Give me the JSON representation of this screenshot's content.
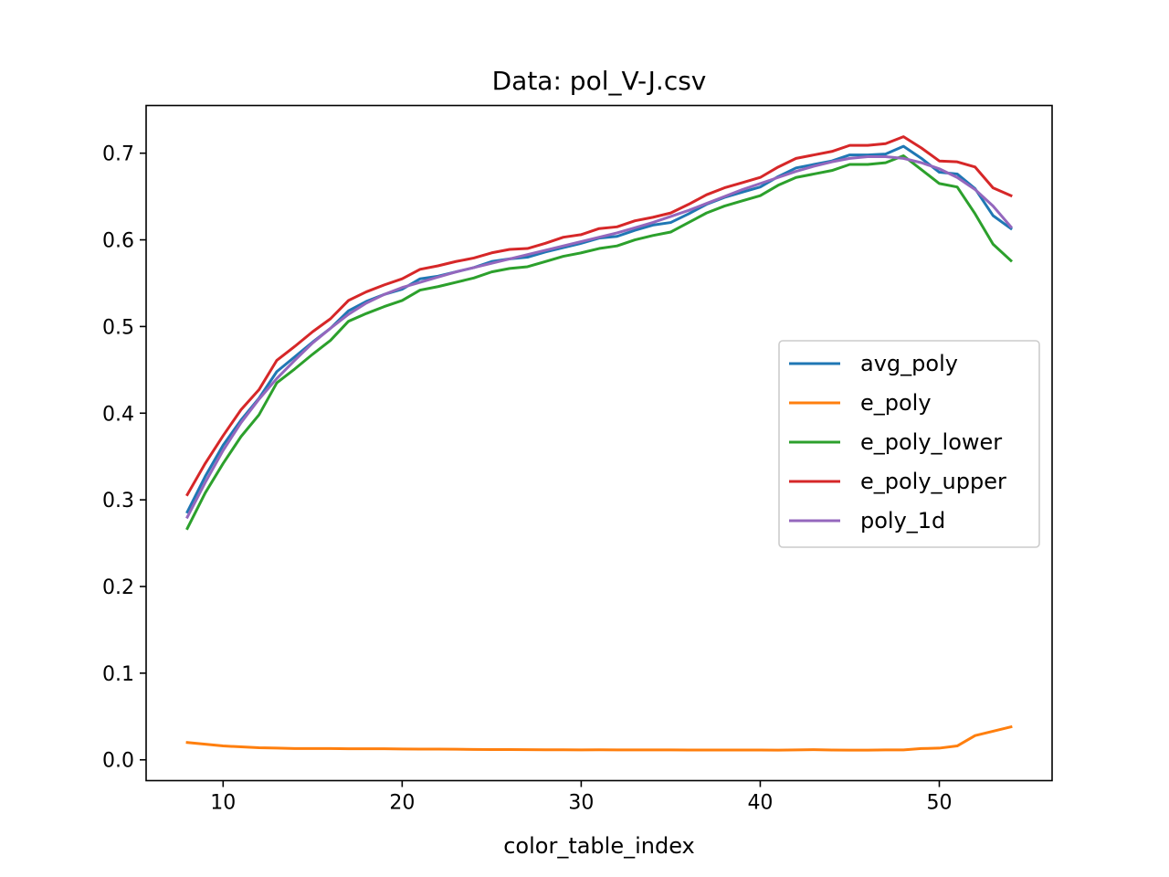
{
  "chart_data": {
    "type": "line",
    "title": "Data: pol_V-J.csv",
    "xlabel": "color_table_index",
    "ylabel": "",
    "xlim": [
      5.7,
      56.3
    ],
    "ylim": [
      -0.024,
      0.755
    ],
    "x_ticks": [
      10,
      20,
      30,
      40,
      50
    ],
    "y_ticks": [
      0.0,
      0.1,
      0.2,
      0.3,
      0.4,
      0.5,
      0.6,
      0.7
    ],
    "x_tick_labels": [
      "10",
      "20",
      "30",
      "40",
      "50"
    ],
    "y_tick_labels": [
      "0.0",
      "0.1",
      "0.2",
      "0.3",
      "0.4",
      "0.5",
      "0.6",
      "0.7"
    ],
    "grid": false,
    "legend_position": "center right",
    "x": [
      8,
      9,
      10,
      11,
      12,
      13,
      14,
      15,
      16,
      17,
      18,
      19,
      20,
      21,
      22,
      23,
      24,
      25,
      26,
      27,
      28,
      29,
      30,
      31,
      32,
      33,
      34,
      35,
      36,
      37,
      38,
      39,
      40,
      41,
      42,
      43,
      44,
      45,
      46,
      47,
      48,
      49,
      50,
      51,
      52,
      53,
      54
    ],
    "series": [
      {
        "name": "avg_poly",
        "color": "#1f77b4",
        "values": [
          0.286,
          0.327,
          0.363,
          0.392,
          0.417,
          0.448,
          0.465,
          0.482,
          0.498,
          0.518,
          0.529,
          0.537,
          0.543,
          0.555,
          0.558,
          0.563,
          0.568,
          0.575,
          0.578,
          0.58,
          0.586,
          0.591,
          0.596,
          0.602,
          0.604,
          0.611,
          0.617,
          0.62,
          0.63,
          0.641,
          0.649,
          0.655,
          0.661,
          0.673,
          0.683,
          0.687,
          0.691,
          0.698,
          0.698,
          0.699,
          0.708,
          0.694,
          0.678,
          0.676,
          0.659,
          0.628,
          0.613
        ]
      },
      {
        "name": "e_poly",
        "color": "#ff7f0e",
        "values": [
          0.02,
          0.018,
          0.016,
          0.015,
          0.014,
          0.0135,
          0.013,
          0.013,
          0.013,
          0.0128,
          0.0128,
          0.0128,
          0.0125,
          0.0124,
          0.0123,
          0.0122,
          0.012,
          0.0118,
          0.0118,
          0.0117,
          0.0116,
          0.0116,
          0.0115,
          0.0116,
          0.0115,
          0.0115,
          0.0114,
          0.0114,
          0.0113,
          0.0113,
          0.0113,
          0.0113,
          0.0113,
          0.0112,
          0.0115,
          0.0117,
          0.0113,
          0.0112,
          0.0112,
          0.0115,
          0.0115,
          0.013,
          0.0135,
          0.016,
          0.028,
          0.033,
          0.038
        ]
      },
      {
        "name": "e_poly_lower",
        "color": "#2ca02c",
        "values": [
          0.267,
          0.308,
          0.342,
          0.373,
          0.398,
          0.435,
          0.451,
          0.468,
          0.484,
          0.506,
          0.515,
          0.523,
          0.53,
          0.542,
          0.546,
          0.551,
          0.556,
          0.563,
          0.567,
          0.569,
          0.575,
          0.581,
          0.585,
          0.59,
          0.593,
          0.6,
          0.605,
          0.609,
          0.62,
          0.631,
          0.639,
          0.645,
          0.651,
          0.663,
          0.672,
          0.676,
          0.68,
          0.687,
          0.687,
          0.689,
          0.697,
          0.681,
          0.665,
          0.661,
          0.63,
          0.595,
          0.576
        ]
      },
      {
        "name": "e_poly_upper",
        "color": "#d62728",
        "values": [
          0.306,
          0.342,
          0.374,
          0.404,
          0.427,
          0.461,
          0.477,
          0.494,
          0.509,
          0.53,
          0.54,
          0.548,
          0.555,
          0.566,
          0.57,
          0.575,
          0.579,
          0.585,
          0.589,
          0.59,
          0.596,
          0.603,
          0.606,
          0.613,
          0.615,
          0.622,
          0.626,
          0.631,
          0.641,
          0.652,
          0.66,
          0.666,
          0.672,
          0.684,
          0.694,
          0.698,
          0.702,
          0.709,
          0.709,
          0.711,
          0.719,
          0.706,
          0.691,
          0.69,
          0.684,
          0.66,
          0.651
        ]
      },
      {
        "name": "poly_1d",
        "color": "#9467bd",
        "values": [
          0.28,
          0.32,
          0.357,
          0.389,
          0.416,
          0.44,
          0.461,
          0.481,
          0.498,
          0.514,
          0.527,
          0.537,
          0.545,
          0.551,
          0.557,
          0.563,
          0.568,
          0.573,
          0.578,
          0.583,
          0.588,
          0.593,
          0.598,
          0.603,
          0.608,
          0.614,
          0.62,
          0.627,
          0.634,
          0.642,
          0.65,
          0.658,
          0.665,
          0.672,
          0.679,
          0.685,
          0.69,
          0.694,
          0.696,
          0.696,
          0.694,
          0.689,
          0.682,
          0.672,
          0.658,
          0.639,
          0.615
        ]
      }
    ]
  }
}
